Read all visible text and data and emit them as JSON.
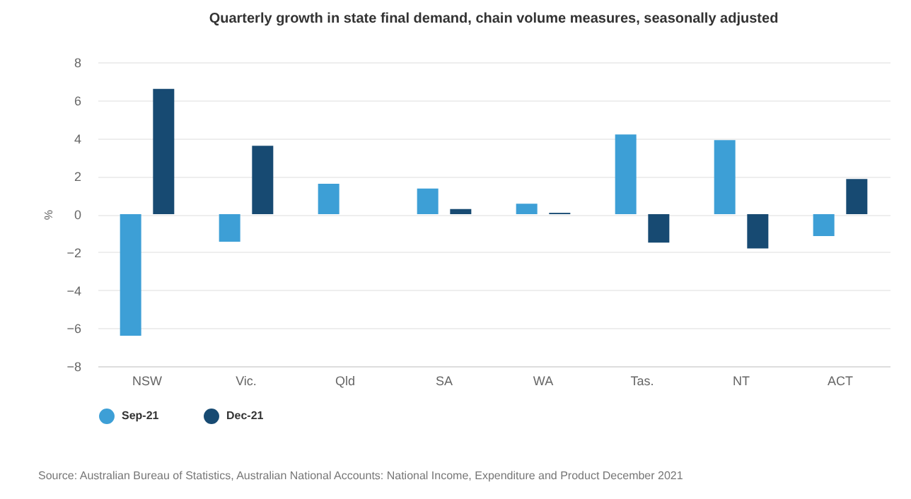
{
  "chart_data": {
    "type": "bar",
    "title": "Quarterly growth in state final demand, chain volume measures, seasonally adjusted",
    "ylabel": "%",
    "categories": [
      "NSW",
      "Vic.",
      "Qld",
      "SA",
      "WA",
      "Tas.",
      "NT",
      "ACT"
    ],
    "series": [
      {
        "name": "Sep-21",
        "color": "#3d9fd6",
        "values": [
          -6.4,
          -1.45,
          1.6,
          1.35,
          0.55,
          4.2,
          3.9,
          -1.15
        ]
      },
      {
        "name": "Dec-21",
        "color": "#174a72",
        "values": [
          6.6,
          3.6,
          0,
          0.27,
          0.07,
          -1.5,
          -1.8,
          1.85
        ]
      }
    ],
    "ylim": [
      -8,
      8
    ],
    "yticks": [
      -8,
      -6,
      -4,
      -2,
      0,
      2,
      4,
      6,
      8
    ],
    "grid": "y",
    "legend": "bottom",
    "annotations": [
      "Source: Australian Bureau of Statistics, Australian National Accounts: National Income, Expenditure and Product December 2021"
    ]
  }
}
